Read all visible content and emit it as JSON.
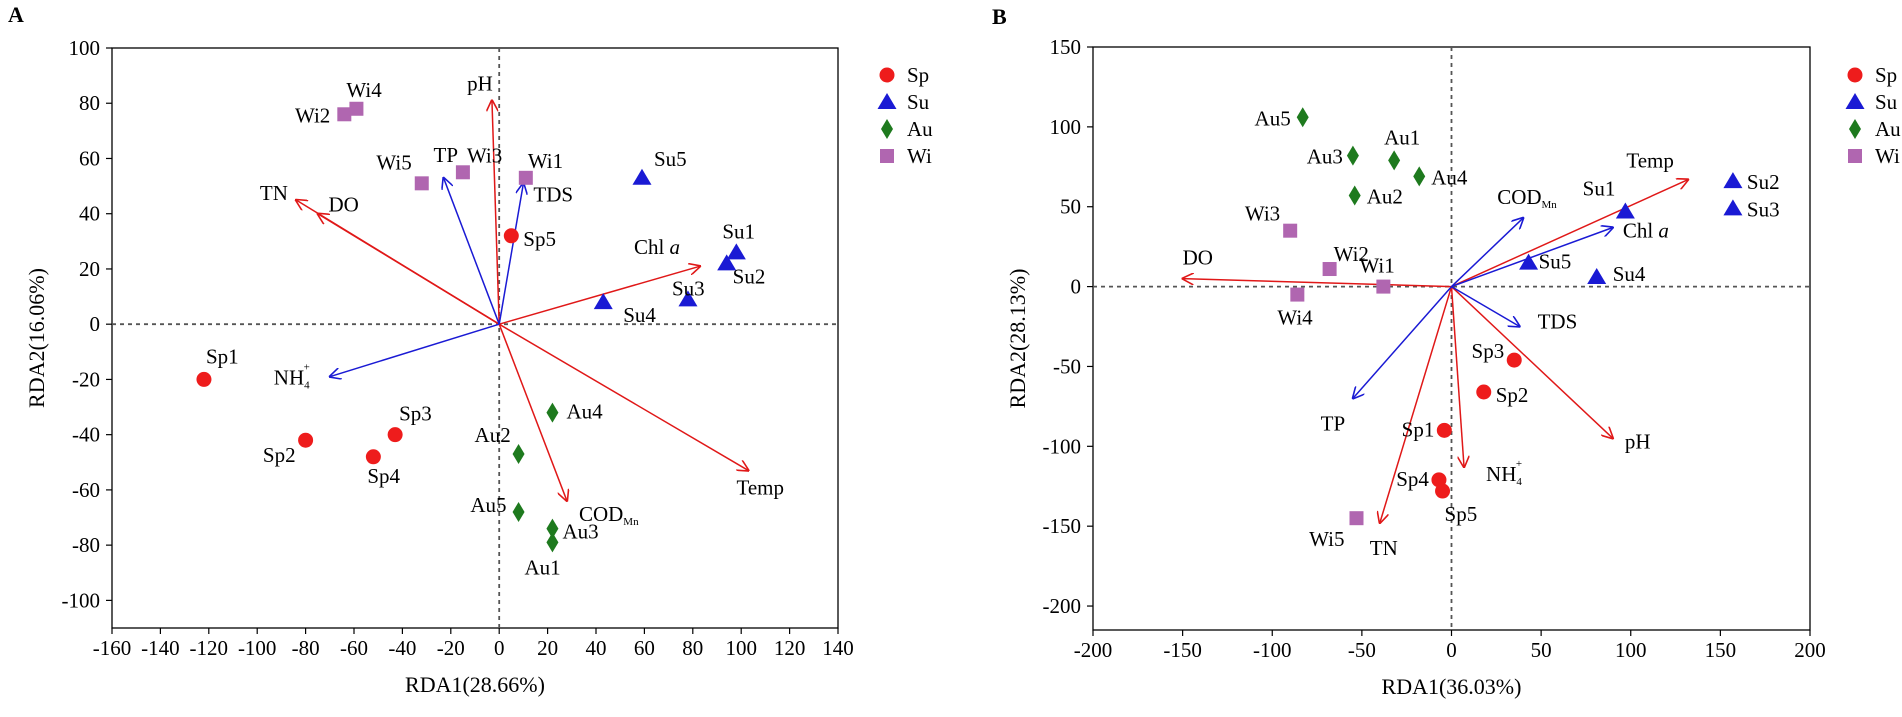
{
  "chart_data": [
    {
      "type": "scatter",
      "panel": "A",
      "xlabel": "RDA1(28.66%)",
      "ylabel": "RDA2(16.06%)",
      "xlim": [
        -160,
        140
      ],
      "ylim": [
        -110,
        100
      ],
      "xticks": [
        -160,
        -140,
        -120,
        -100,
        -80,
        -60,
        -40,
        -20,
        0,
        20,
        40,
        60,
        80,
        100,
        120,
        140
      ],
      "yticks": [
        -100,
        -80,
        -60,
        -40,
        -20,
        0,
        20,
        40,
        60,
        80,
        100
      ],
      "legend": [
        {
          "label": "Sp",
          "shape": "circle",
          "color": "#ee1c1c"
        },
        {
          "label": "Su",
          "shape": "triangle",
          "color": "#1a1ad4"
        },
        {
          "label": "Au",
          "shape": "diamond",
          "color": "#1e7a1e"
        },
        {
          "label": "Wi",
          "shape": "square",
          "color": "#b066b0"
        }
      ],
      "points": [
        {
          "label": "Sp1",
          "group": "Sp",
          "x": -122,
          "y": -20
        },
        {
          "label": "Sp2",
          "group": "Sp",
          "x": -80,
          "y": -42
        },
        {
          "label": "Sp3",
          "group": "Sp",
          "x": -43,
          "y": -40
        },
        {
          "label": "Sp4",
          "group": "Sp",
          "x": -52,
          "y": -48
        },
        {
          "label": "Sp5",
          "group": "Sp",
          "x": 5,
          "y": 32
        },
        {
          "label": "Su1",
          "group": "Su",
          "x": 98,
          "y": 26
        },
        {
          "label": "Su2",
          "group": "Su",
          "x": 94,
          "y": 22
        },
        {
          "label": "Su3",
          "group": "Su",
          "x": 78,
          "y": 9
        },
        {
          "label": "Su4",
          "group": "Su",
          "x": 43,
          "y": 8
        },
        {
          "label": "Su5",
          "group": "Su",
          "x": 59,
          "y": 53
        },
        {
          "label": "Au1",
          "group": "Au",
          "x": 22,
          "y": -79
        },
        {
          "label": "Au2",
          "group": "Au",
          "x": 8,
          "y": -47
        },
        {
          "label": "Au3",
          "group": "Au",
          "x": 22,
          "y": -74
        },
        {
          "label": "Au4",
          "group": "Au",
          "x": 22,
          "y": -32
        },
        {
          "label": "Au5",
          "group": "Au",
          "x": 8,
          "y": -68
        },
        {
          "label": "Wi1",
          "group": "Wi",
          "x": 11,
          "y": 53
        },
        {
          "label": "Wi2",
          "group": "Wi",
          "x": -64,
          "y": 76
        },
        {
          "label": "Wi3",
          "group": "Wi",
          "x": -15,
          "y": 55
        },
        {
          "label": "Wi4",
          "group": "Wi",
          "x": -59,
          "y": 78
        },
        {
          "label": "Wi5",
          "group": "Wi",
          "x": -32,
          "y": 51
        }
      ],
      "arrows": [
        {
          "label": "pH",
          "sub": "",
          "sup": "",
          "color": "#e01818",
          "x": -3,
          "y": 81
        },
        {
          "label": "TN",
          "sub": "",
          "sup": "",
          "color": "#e01818",
          "x": -84,
          "y": 45
        },
        {
          "label": "DO",
          "sub": "",
          "sup": "",
          "color": "#e01818",
          "x": -75,
          "y": 40
        },
        {
          "label": "Chl ",
          "italic": "a",
          "color": "#e01818",
          "x": 83,
          "y": 21
        },
        {
          "label": "Temp",
          "sub": "",
          "sup": "",
          "color": "#e01818",
          "x": 103,
          "y": -53
        },
        {
          "label": "COD",
          "sub": "Mn",
          "sup": "",
          "color": "#e01818",
          "x": 28,
          "y": -64
        },
        {
          "label": "TP",
          "sub": "",
          "sup": "",
          "color": "#1a1ad4",
          "x": -23,
          "y": 53
        },
        {
          "label": "TDS",
          "sub": "",
          "sup": "",
          "color": "#1a1ad4",
          "x": 10,
          "y": 51
        },
        {
          "label": "NH",
          "sub": "4",
          "sup": "+",
          "color": "#1a1ad4",
          "x": -70,
          "y": -19
        }
      ]
    },
    {
      "type": "scatter",
      "panel": "B",
      "xlabel": "RDA1(36.03%)",
      "ylabel": "RDA2(28.13%)",
      "xlim": [
        -200,
        200
      ],
      "ylim": [
        -215,
        150
      ],
      "xticks": [
        -200,
        -150,
        -100,
        -50,
        0,
        50,
        100,
        150,
        200
      ],
      "yticks": [
        -200,
        -150,
        -100,
        -50,
        0,
        50,
        100,
        150
      ],
      "legend": [
        {
          "label": "Sp",
          "shape": "circle",
          "color": "#ee1c1c"
        },
        {
          "label": "Su",
          "shape": "triangle",
          "color": "#1a1ad4"
        },
        {
          "label": "Au",
          "shape": "diamond",
          "color": "#1e7a1e"
        },
        {
          "label": "Wi",
          "shape": "square",
          "color": "#b066b0"
        }
      ],
      "points": [
        {
          "label": "Sp1",
          "group": "Sp",
          "x": -4,
          "y": -90
        },
        {
          "label": "Sp2",
          "group": "Sp",
          "x": 18,
          "y": -66
        },
        {
          "label": "Sp3",
          "group": "Sp",
          "x": 35,
          "y": -46
        },
        {
          "label": "Sp4",
          "group": "Sp",
          "x": -7,
          "y": -121
        },
        {
          "label": "Sp5",
          "group": "Sp",
          "x": -5,
          "y": -128
        },
        {
          "label": "Su1",
          "group": "Su",
          "x": 97,
          "y": 47
        },
        {
          "label": "Su2",
          "group": "Su",
          "x": 157,
          "y": 66
        },
        {
          "label": "Su3",
          "group": "Su",
          "x": 157,
          "y": 49
        },
        {
          "label": "Su4",
          "group": "Su",
          "x": 81,
          "y": 6
        },
        {
          "label": "Su5",
          "group": "Su",
          "x": 43,
          "y": 15
        },
        {
          "label": "Au1",
          "group": "Au",
          "x": -32,
          "y": 79
        },
        {
          "label": "Au2",
          "group": "Au",
          "x": -54,
          "y": 57
        },
        {
          "label": "Au3",
          "group": "Au",
          "x": -55,
          "y": 82
        },
        {
          "label": "Au4",
          "group": "Au",
          "x": -18,
          "y": 69
        },
        {
          "label": "Au5",
          "group": "Au",
          "x": -83,
          "y": 106
        },
        {
          "label": "Wi1",
          "group": "Wi",
          "x": -38,
          "y": 0
        },
        {
          "label": "Wi2",
          "group": "Wi",
          "x": -68,
          "y": 11
        },
        {
          "label": "Wi3",
          "group": "Wi",
          "x": -90,
          "y": 35
        },
        {
          "label": "Wi4",
          "group": "Wi",
          "x": -86,
          "y": -5
        },
        {
          "label": "Wi5",
          "group": "Wi",
          "x": -53,
          "y": -145
        }
      ],
      "arrows": [
        {
          "label": "Temp",
          "sub": "",
          "sup": "",
          "color": "#e01818",
          "x": 132,
          "y": 67
        },
        {
          "label": "DO",
          "sub": "",
          "sup": "",
          "color": "#e01818",
          "x": -150,
          "y": 5
        },
        {
          "label": "pH",
          "sub": "",
          "sup": "",
          "color": "#e01818",
          "x": 90,
          "y": -95
        },
        {
          "label": "NH",
          "sub": "4",
          "sup": "+",
          "color": "#e01818",
          "x": 7,
          "y": -113
        },
        {
          "label": "TN",
          "sub": "",
          "sup": "",
          "color": "#e01818",
          "x": -40,
          "y": -148
        },
        {
          "label": "COD",
          "sub": "Mn",
          "sup": "",
          "color": "#1a1ad4",
          "x": 40,
          "y": 43
        },
        {
          "label": "Chl ",
          "italic": "a",
          "color": "#1a1ad4",
          "x": 90,
          "y": 37
        },
        {
          "label": "TDS",
          "sub": "",
          "sup": "",
          "color": "#1a1ad4",
          "x": 38,
          "y": -25
        },
        {
          "label": "TP",
          "sub": "",
          "sup": "",
          "color": "#1a1ad4",
          "x": -55,
          "y": -70
        }
      ]
    }
  ]
}
